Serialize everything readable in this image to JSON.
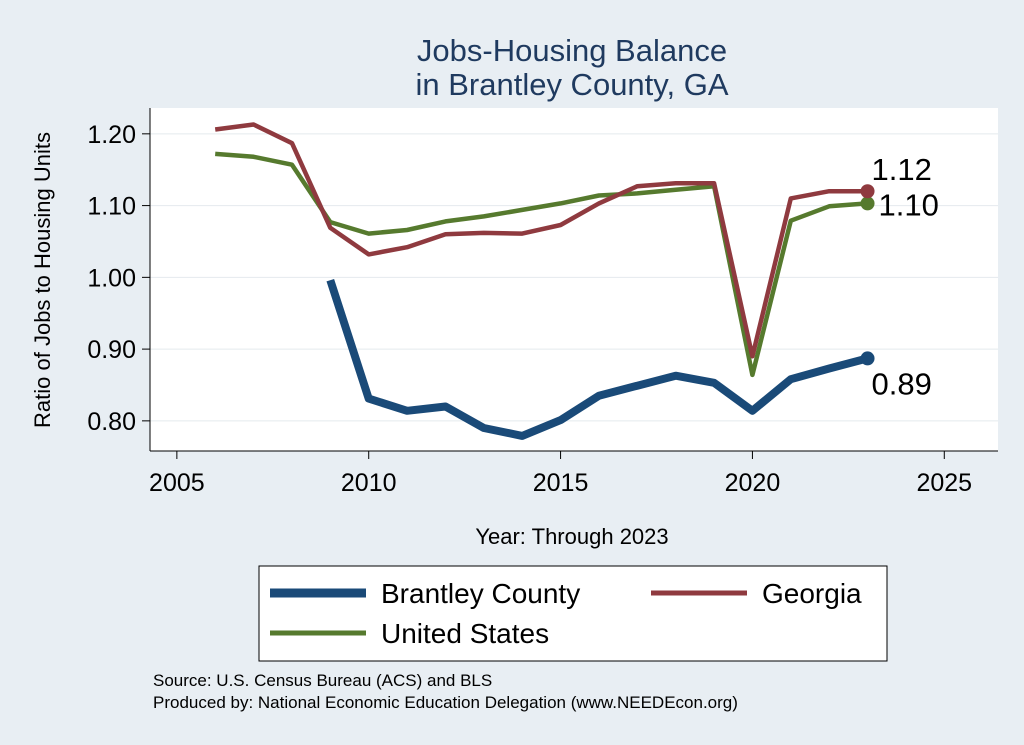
{
  "chart_data": {
    "type": "line",
    "title": [
      "Jobs-Housing Balance",
      "in Brantley County, GA"
    ],
    "xlabel": "Year: Through 2023",
    "ylabel": "Ratio of Jobs to Housing Units",
    "xlim": [
      2004.3,
      2026.4
    ],
    "ylim": [
      0.758,
      1.236
    ],
    "xticks": [
      2005,
      2010,
      2015,
      2020,
      2025
    ],
    "yticks": [
      0.8,
      0.9,
      1.0,
      1.1,
      1.2
    ],
    "ytick_labels": [
      "0.80",
      "0.90",
      "1.00",
      "1.10",
      "1.20"
    ],
    "grid": true,
    "legend_position": "bottom",
    "series": [
      {
        "name": "Brantley County",
        "color": "#1a4a78",
        "x": [
          2009,
          2010,
          2011,
          2012,
          2013,
          2014,
          2015,
          2016,
          2017,
          2018,
          2019,
          2020,
          2021,
          2022,
          2023
        ],
        "values": [
          0.996,
          0.831,
          0.814,
          0.82,
          0.79,
          0.779,
          0.801,
          0.835,
          0.849,
          0.863,
          0.853,
          0.814,
          0.858,
          0.873,
          0.887
        ],
        "end_label": "0.89"
      },
      {
        "name": "Georgia",
        "color": "#8f3a3f",
        "x": [
          2006,
          2007,
          2008,
          2009,
          2010,
          2011,
          2012,
          2013,
          2014,
          2015,
          2016,
          2017,
          2018,
          2019,
          2020,
          2021,
          2022,
          2023
        ],
        "values": [
          1.206,
          1.213,
          1.187,
          1.069,
          1.032,
          1.042,
          1.06,
          1.062,
          1.061,
          1.073,
          1.103,
          1.127,
          1.131,
          1.131,
          0.89,
          1.11,
          1.12,
          1.12
        ],
        "end_label": "1.12"
      },
      {
        "name": "United States",
        "color": "#567a2e",
        "x": [
          2006,
          2007,
          2008,
          2009,
          2010,
          2011,
          2012,
          2013,
          2014,
          2015,
          2016,
          2017,
          2018,
          2019,
          2020,
          2021,
          2022,
          2023
        ],
        "values": [
          1.172,
          1.168,
          1.157,
          1.077,
          1.061,
          1.066,
          1.078,
          1.085,
          1.094,
          1.103,
          1.114,
          1.117,
          1.122,
          1.127,
          0.864,
          1.079,
          1.099,
          1.103
        ],
        "end_label": "1.10"
      }
    ]
  },
  "legend": {
    "items": [
      "Brantley County",
      "Georgia",
      "United States"
    ]
  },
  "footer": {
    "source": "Source: U.S. Census Bureau (ACS) and BLS",
    "produced": "Produced by: National Economic Education Delegation (www.NEEDEcon.org)"
  }
}
